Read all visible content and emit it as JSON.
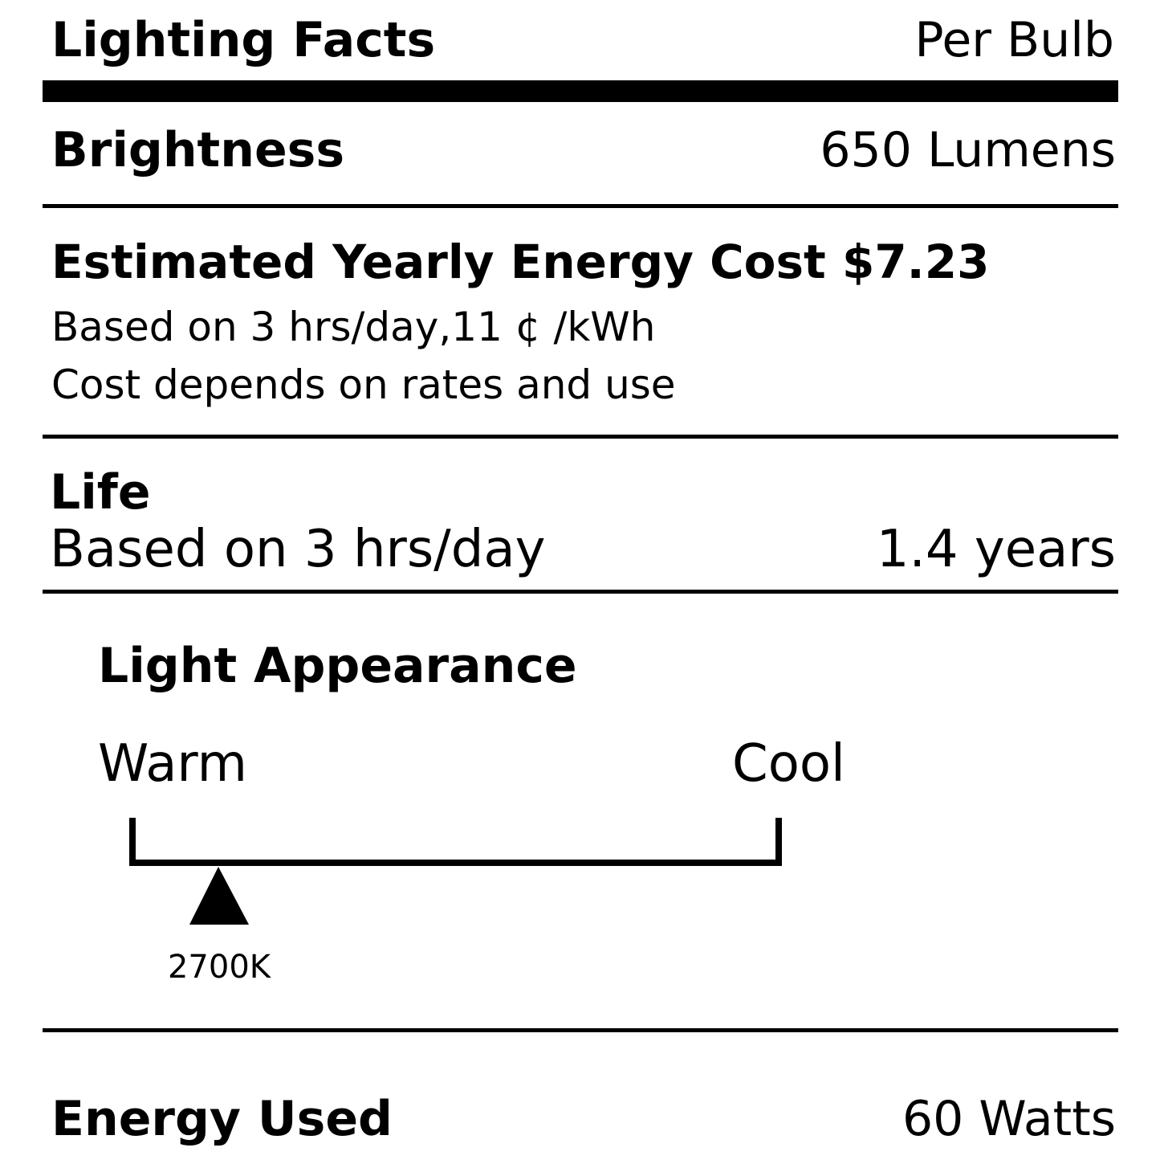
{
  "header": {
    "title": "Lighting Facts",
    "subtitle": "Per Bulb"
  },
  "brightness": {
    "label": "Brightness",
    "value": "650 Lumens"
  },
  "cost": {
    "label": "Estimated Yearly Energy Cost",
    "value": "$7.23",
    "notes": [
      "Based on 3 hrs/day,11 ¢ /kWh",
      "Cost depends on rates and use"
    ]
  },
  "life": {
    "label": "Life",
    "basis": "Based on 3 hrs/day",
    "value": "1.4 years"
  },
  "appearance": {
    "title": "Light Appearance",
    "warm": "Warm",
    "cool": "Cool",
    "marker": "2700K"
  },
  "energy": {
    "label": "Energy Used",
    "value": "60 Watts"
  }
}
